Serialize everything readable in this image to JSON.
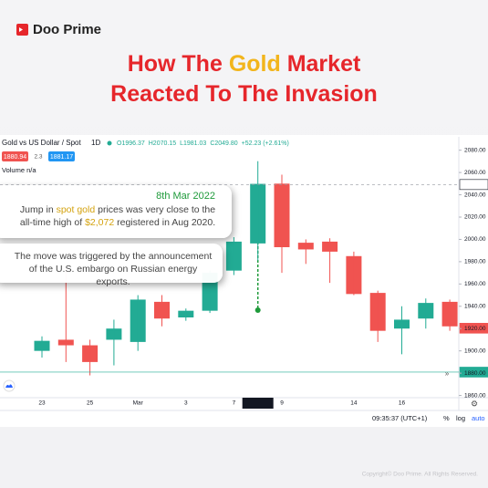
{
  "header": {
    "brand": "Doo Prime",
    "title_line1": {
      "before": "How The",
      "highlight": "Gold",
      "after": "Market"
    },
    "title_line2": "Reacted To The Invasion"
  },
  "chart_data": {
    "type": "candlestick",
    "symbol": "Gold vs US Dollar / Spot",
    "interval": "1D",
    "ohlc_legend": [
      "O1996.37",
      "H2070.15",
      "L1981.03",
      "C2049.80",
      "+52.23 (+2.61%)"
    ],
    "bid": "1880.94",
    "spread": "2.3",
    "ask": "1881.17",
    "volume": "Volume n/a",
    "categories": [
      "23",
      null,
      "25",
      null,
      "Mar",
      null,
      "3",
      null,
      "7",
      "08 Mar '22",
      "9",
      null,
      null,
      "14",
      null,
      "16",
      null,
      null
    ],
    "highlight_index": 9,
    "open": [
      1900,
      1910,
      1905,
      1910,
      1908,
      1944,
      1930,
      1936,
      1972,
      1996.37,
      2050,
      1997,
      1998,
      1985,
      1952,
      1920,
      1929,
      1944
    ],
    "high": [
      1913,
      1974,
      1910,
      1928,
      1950,
      1950,
      1938,
      1972,
      2002,
      2070.15,
      2058,
      2000,
      2001,
      1989,
      1954,
      1940,
      1947,
      1946
    ],
    "low": [
      1894,
      1890,
      1878,
      1887,
      1900,
      1922,
      1927,
      1934,
      1968,
      1981.03,
      1970,
      1978,
      1961,
      1950,
      1908,
      1897,
      1920,
      1918
    ],
    "close": [
      1909,
      1905,
      1890,
      1920,
      1946,
      1929,
      1936,
      1970,
      1998,
      2049.8,
      1993,
      1991,
      1989,
      1951,
      1918,
      1928,
      1943,
      1922
    ],
    "up_color": "#22ab94",
    "down_color": "#f05350",
    "ylim": [
      1858,
      2092
    ],
    "yticks": [
      {
        "value": 2080,
        "label": "2080.00"
      },
      {
        "value": 2060,
        "label": "2060.00"
      },
      {
        "value": 2040,
        "label": "2040.00"
      },
      {
        "value": 2020,
        "label": "2020.00"
      },
      {
        "value": 2000,
        "label": "2000.00"
      },
      {
        "value": 1980,
        "label": "1980.00"
      },
      {
        "value": 1960,
        "label": "1960.00"
      },
      {
        "value": 1940,
        "label": "1940.00"
      },
      {
        "value": 1920,
        "label": "1920.00"
      },
      {
        "value": 1900,
        "label": "1900.00"
      },
      {
        "value": 1880,
        "label": "1880.00"
      },
      {
        "value": 1860,
        "label": "1860.00"
      }
    ],
    "price_labels": [
      {
        "value": 2049.18,
        "label": "2049.18",
        "color": "#ffffff",
        "text_color": "#131722",
        "line": "dashed"
      },
      {
        "value": 1920.33,
        "label": "1920.33",
        "color": "#f05350",
        "text_color": "#ffffff",
        "line": "none"
      },
      {
        "value": 1880.94,
        "label": "1880.94",
        "color": "#22ab94",
        "text_color": "#ffffff",
        "line": "solid"
      }
    ],
    "annotations": [
      {
        "title": "8th Mar 2022",
        "parts": [
          "Jump in",
          "spot gold",
          "prices was very close to the all-time high of",
          "$2,072",
          "registered in Aug 2020."
        ]
      },
      {
        "text": "The move was triggered by the announcement of the U.S. embargo on Russian energy exports."
      }
    ]
  },
  "toolbar": {
    "time": "09:35:37 (UTC+1)",
    "percent": "%",
    "log": "log",
    "auto": "auto"
  },
  "footer": "Copyright© Doo Prime. All Rights Reserved."
}
